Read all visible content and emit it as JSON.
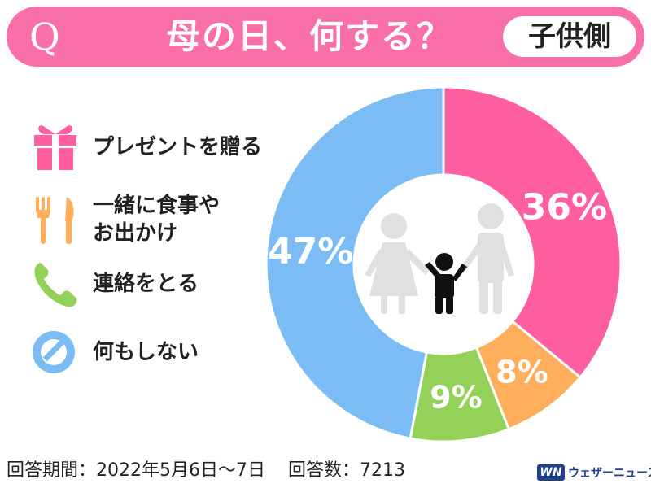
{
  "header": {
    "q_label": "Q",
    "title": "母の日、何する？",
    "side_tag": "子供側"
  },
  "legend": [
    {
      "label": "プレゼントを贈る",
      "icon": "gift-icon",
      "color": "#ff5fa0"
    },
    {
      "label": "一緒に食事や\nお出かけ",
      "icon": "fork-knife-icon",
      "color": "#ffae5c"
    },
    {
      "label": "連絡をとる",
      "icon": "phone-icon",
      "color": "#93d158"
    },
    {
      "label": "何もしない",
      "icon": "no-sign-icon",
      "color": "#7cbcf4"
    }
  ],
  "chart_data": {
    "type": "pie",
    "style": "donut",
    "start": "top",
    "direction": "clockwise",
    "categories": [
      "プレゼントを贈る",
      "一緒に食事やお出かけ",
      "連絡をとる",
      "何もしない"
    ],
    "values": [
      36,
      8,
      9,
      47
    ],
    "labels": [
      "36%",
      "8%",
      "9%",
      "47%"
    ],
    "colors": [
      "#ff5fa0",
      "#ffae5c",
      "#93d158",
      "#7cbcf4"
    ],
    "center_icon": "family-icon",
    "center_icon_colors": {
      "parents": "#e0e0e0",
      "child": "#111111"
    }
  },
  "footer": {
    "period": "回答期間：2022年5月6日～7日",
    "count": "回答数：7213"
  },
  "brand": {
    "mark": "WN",
    "name": "ウェザーニュース",
    "color": "#1f3f8f"
  }
}
